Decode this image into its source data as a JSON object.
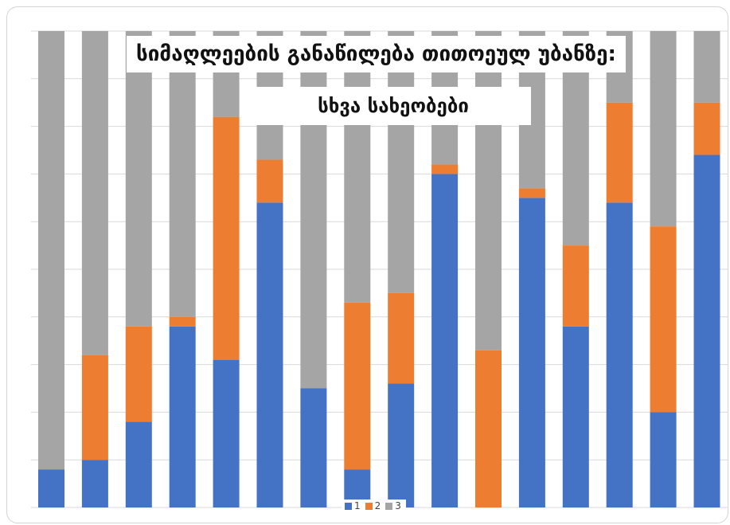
{
  "chart_data": {
    "type": "bar",
    "stacked": true,
    "percent": true,
    "title": "სიმაღლეების განაწილება თითოეულ უბანზე:",
    "subtitle": "სხვა სახეობები",
    "legend_position": "bottom",
    "grid": true,
    "categories": [
      "",
      "",
      "",
      "",
      "",
      "",
      "",
      "",
      "",
      "",
      "",
      "",
      "",
      "",
      "",
      ""
    ],
    "ylim": [
      0,
      100
    ],
    "series": [
      {
        "name": "1",
        "color": "#4472c4",
        "values": [
          8,
          10,
          18,
          38,
          31,
          64,
          25,
          8,
          26,
          70,
          0,
          65,
          38,
          64,
          20,
          74
        ]
      },
      {
        "name": "2",
        "color": "#ed7d31",
        "values": [
          0,
          22,
          20,
          2,
          51,
          9,
          0,
          35,
          19,
          2,
          33,
          2,
          17,
          21,
          39,
          11
        ]
      },
      {
        "name": "3",
        "color": "#a5a5a5",
        "values": [
          92,
          68,
          62,
          60,
          18,
          27,
          75,
          57,
          55,
          28,
          67,
          33,
          45,
          15,
          41,
          15
        ]
      }
    ]
  }
}
